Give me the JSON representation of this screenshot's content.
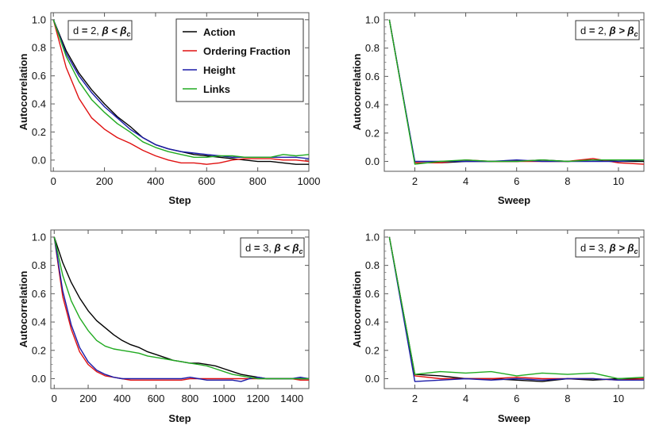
{
  "chart_data": [
    {
      "type": "line",
      "xlabel": "Step",
      "ylabel": "Autocorrelation",
      "annotation": {
        "d": "2",
        "rel": "<"
      },
      "xlim": [
        -10,
        1000
      ],
      "ylim": [
        -0.08,
        1.05
      ],
      "xticks": [
        0,
        200,
        400,
        600,
        800,
        1000
      ],
      "yticks": [
        0.0,
        0.2,
        0.4,
        0.6,
        0.8,
        1.0
      ],
      "ytick_labels": [
        "0.0",
        "0.2",
        "0.4",
        "0.6",
        "0.8",
        "1.0"
      ],
      "legend": "top-right",
      "series": [
        {
          "name": "Action",
          "color": "#000000",
          "x": [
            0,
            50,
            100,
            150,
            200,
            250,
            300,
            350,
            400,
            450,
            500,
            550,
            600,
            650,
            700,
            750,
            800,
            850,
            900,
            950,
            1000
          ],
          "y": [
            1.0,
            0.78,
            0.62,
            0.5,
            0.4,
            0.31,
            0.24,
            0.16,
            0.11,
            0.08,
            0.06,
            0.04,
            0.03,
            0.02,
            0.01,
            0.0,
            -0.01,
            -0.01,
            -0.02,
            -0.03,
            -0.03
          ]
        },
        {
          "name": "Ordering Fraction",
          "color": "#e01010",
          "x": [
            0,
            50,
            100,
            150,
            200,
            250,
            300,
            350,
            400,
            450,
            500,
            550,
            600,
            650,
            700,
            750,
            800,
            850,
            900,
            950,
            1000
          ],
          "y": [
            1.0,
            0.66,
            0.44,
            0.3,
            0.22,
            0.16,
            0.12,
            0.07,
            0.03,
            0.0,
            -0.02,
            -0.02,
            -0.03,
            -0.02,
            0.0,
            0.01,
            0.01,
            0.01,
            0.0,
            0.0,
            -0.01
          ]
        },
        {
          "name": "Height",
          "color": "#1a1aa8",
          "x": [
            0,
            50,
            100,
            150,
            200,
            250,
            300,
            350,
            400,
            450,
            500,
            550,
            600,
            650,
            700,
            750,
            800,
            850,
            900,
            950,
            1000
          ],
          "y": [
            1.0,
            0.76,
            0.6,
            0.48,
            0.38,
            0.3,
            0.22,
            0.16,
            0.11,
            0.08,
            0.06,
            0.05,
            0.04,
            0.03,
            0.02,
            0.02,
            0.02,
            0.02,
            0.02,
            0.02,
            0.01
          ]
        },
        {
          "name": "Links",
          "color": "#20aa20",
          "x": [
            0,
            50,
            100,
            150,
            200,
            250,
            300,
            350,
            400,
            450,
            500,
            550,
            600,
            650,
            700,
            750,
            800,
            850,
            900,
            950,
            1000
          ],
          "y": [
            1.0,
            0.74,
            0.56,
            0.43,
            0.34,
            0.26,
            0.2,
            0.13,
            0.09,
            0.06,
            0.04,
            0.02,
            0.02,
            0.03,
            0.03,
            0.02,
            0.02,
            0.02,
            0.04,
            0.03,
            0.04
          ]
        }
      ]
    },
    {
      "type": "line",
      "xlabel": "Sweep",
      "ylabel": "Autocorrelation",
      "annotation": {
        "d": "2",
        "rel": ">"
      },
      "xlim": [
        0.8,
        11
      ],
      "ylim": [
        -0.07,
        1.05
      ],
      "xticks": [
        2,
        4,
        6,
        8,
        10
      ],
      "yticks": [
        0.0,
        0.2,
        0.4,
        0.6,
        0.8,
        1.0
      ],
      "ytick_labels": [
        "0.0",
        "0.2",
        "0.4",
        "0.6",
        "0.8",
        "1.0"
      ],
      "series": [
        {
          "color": "#000000",
          "x": [
            1,
            2,
            3,
            4,
            5,
            6,
            7,
            8,
            9,
            10,
            11
          ],
          "y": [
            1.0,
            -0.01,
            -0.01,
            0.0,
            0.0,
            0.0,
            0.01,
            0.0,
            0.01,
            0.0,
            0.0
          ]
        },
        {
          "color": "#e01010",
          "x": [
            1,
            2,
            3,
            4,
            5,
            6,
            7,
            8,
            9,
            10,
            11
          ],
          "y": [
            1.0,
            -0.01,
            -0.01,
            0.01,
            0.0,
            0.0,
            0.0,
            0.0,
            0.02,
            -0.01,
            -0.02
          ]
        },
        {
          "color": "#1a1aa8",
          "x": [
            1,
            2,
            3,
            4,
            5,
            6,
            7,
            8,
            9,
            10,
            11
          ],
          "y": [
            1.0,
            0.0,
            0.0,
            0.0,
            0.0,
            0.01,
            0.0,
            0.0,
            0.0,
            0.0,
            0.01
          ]
        },
        {
          "color": "#20aa20",
          "x": [
            1,
            2,
            3,
            4,
            5,
            6,
            7,
            8,
            9,
            10,
            11
          ],
          "y": [
            1.0,
            -0.02,
            0.0,
            0.01,
            0.0,
            0.0,
            0.01,
            0.0,
            0.01,
            0.01,
            0.01
          ]
        }
      ]
    },
    {
      "type": "line",
      "xlabel": "Step",
      "ylabel": "Autocorrelation",
      "annotation": {
        "d": "3",
        "rel": "<"
      },
      "xlim": [
        -20,
        1500
      ],
      "ylim": [
        -0.07,
        1.05
      ],
      "xticks": [
        0,
        200,
        400,
        600,
        800,
        1000,
        1200,
        1400
      ],
      "yticks": [
        0.0,
        0.2,
        0.4,
        0.6,
        0.8,
        1.0
      ],
      "ytick_labels": [
        "0.0",
        "0.2",
        "0.4",
        "0.6",
        "0.8",
        "1.0"
      ],
      "series": [
        {
          "color": "#000000",
          "x": [
            0,
            50,
            100,
            150,
            200,
            250,
            300,
            350,
            400,
            450,
            500,
            550,
            600,
            650,
            700,
            750,
            800,
            850,
            900,
            950,
            1000,
            1050,
            1100,
            1150,
            1200,
            1250,
            1300,
            1350,
            1400,
            1450,
            1500
          ],
          "y": [
            1.0,
            0.82,
            0.68,
            0.57,
            0.48,
            0.41,
            0.36,
            0.31,
            0.27,
            0.24,
            0.22,
            0.19,
            0.17,
            0.15,
            0.13,
            0.12,
            0.11,
            0.11,
            0.1,
            0.09,
            0.07,
            0.05,
            0.03,
            0.02,
            0.01,
            0.0,
            0.0,
            0.0,
            0.0,
            0.0,
            0.0
          ]
        },
        {
          "color": "#e01010",
          "x": [
            0,
            50,
            100,
            150,
            200,
            250,
            300,
            350,
            400,
            450,
            500,
            550,
            600,
            650,
            700,
            750,
            800,
            850,
            900,
            950,
            1000,
            1050,
            1100,
            1150,
            1200,
            1250,
            1300,
            1350,
            1400,
            1450,
            1500
          ],
          "y": [
            1.0,
            0.58,
            0.35,
            0.19,
            0.1,
            0.05,
            0.02,
            0.01,
            0.0,
            -0.01,
            -0.01,
            -0.01,
            -0.01,
            -0.01,
            -0.01,
            -0.01,
            0.0,
            0.0,
            0.0,
            0.0,
            0.0,
            0.0,
            0.0,
            0.0,
            0.0,
            0.0,
            0.0,
            0.0,
            0.0,
            -0.01,
            -0.01
          ]
        },
        {
          "color": "#1a1aa8",
          "x": [
            0,
            50,
            100,
            150,
            200,
            250,
            300,
            350,
            400,
            450,
            500,
            550,
            600,
            650,
            700,
            750,
            800,
            850,
            900,
            950,
            1000,
            1050,
            1100,
            1150,
            1200,
            1250,
            1300,
            1350,
            1400,
            1450,
            1500
          ],
          "y": [
            1.0,
            0.62,
            0.38,
            0.22,
            0.12,
            0.06,
            0.03,
            0.01,
            0.0,
            0.0,
            0.0,
            0.0,
            0.0,
            0.0,
            0.0,
            0.0,
            0.01,
            0.0,
            -0.01,
            -0.01,
            -0.01,
            -0.01,
            -0.02,
            0.0,
            0.01,
            0.0,
            0.0,
            0.0,
            0.0,
            0.01,
            0.0
          ]
        },
        {
          "color": "#20aa20",
          "x": [
            0,
            50,
            100,
            150,
            200,
            250,
            300,
            350,
            400,
            450,
            500,
            550,
            600,
            650,
            700,
            750,
            800,
            850,
            900,
            950,
            1000,
            1050,
            1100,
            1150,
            1200,
            1250,
            1300,
            1350,
            1400,
            1450,
            1500
          ],
          "y": [
            1.0,
            0.73,
            0.55,
            0.43,
            0.34,
            0.27,
            0.23,
            0.21,
            0.2,
            0.19,
            0.18,
            0.16,
            0.15,
            0.14,
            0.13,
            0.12,
            0.11,
            0.1,
            0.09,
            0.07,
            0.05,
            0.03,
            0.02,
            0.01,
            0.0,
            0.0,
            0.0,
            0.0,
            0.0,
            0.0,
            0.0
          ]
        }
      ]
    },
    {
      "type": "line",
      "xlabel": "Sweep",
      "ylabel": "Autocorrelation",
      "annotation": {
        "d": "3",
        "rel": ">"
      },
      "xlim": [
        0.8,
        11
      ],
      "ylim": [
        -0.07,
        1.05
      ],
      "xticks": [
        2,
        4,
        6,
        8,
        10
      ],
      "yticks": [
        0.0,
        0.2,
        0.4,
        0.6,
        0.8,
        1.0
      ],
      "ytick_labels": [
        "0.0",
        "0.2",
        "0.4",
        "0.6",
        "0.8",
        "1.0"
      ],
      "series": [
        {
          "color": "#000000",
          "x": [
            1,
            2,
            3,
            4,
            5,
            6,
            7,
            8,
            9,
            10,
            11
          ],
          "y": [
            1.0,
            0.03,
            0.02,
            0.0,
            0.0,
            -0.01,
            -0.02,
            0.0,
            -0.01,
            0.0,
            0.0
          ]
        },
        {
          "color": "#e01010",
          "x": [
            1,
            2,
            3,
            4,
            5,
            6,
            7,
            8,
            9,
            10,
            11
          ],
          "y": [
            1.0,
            0.02,
            0.0,
            0.0,
            0.0,
            0.01,
            0.0,
            0.0,
            0.0,
            -0.01,
            0.0
          ]
        },
        {
          "color": "#1a1aa8",
          "x": [
            1,
            2,
            3,
            4,
            5,
            6,
            7,
            8,
            9,
            10,
            11
          ],
          "y": [
            1.0,
            -0.02,
            -0.01,
            0.0,
            -0.01,
            0.0,
            -0.01,
            0.0,
            0.0,
            -0.01,
            -0.01
          ]
        },
        {
          "color": "#20aa20",
          "x": [
            1,
            2,
            3,
            4,
            5,
            6,
            7,
            8,
            9,
            10,
            11
          ],
          "y": [
            1.0,
            0.03,
            0.05,
            0.04,
            0.05,
            0.02,
            0.04,
            0.03,
            0.04,
            0.0,
            0.01
          ]
        }
      ]
    }
  ]
}
